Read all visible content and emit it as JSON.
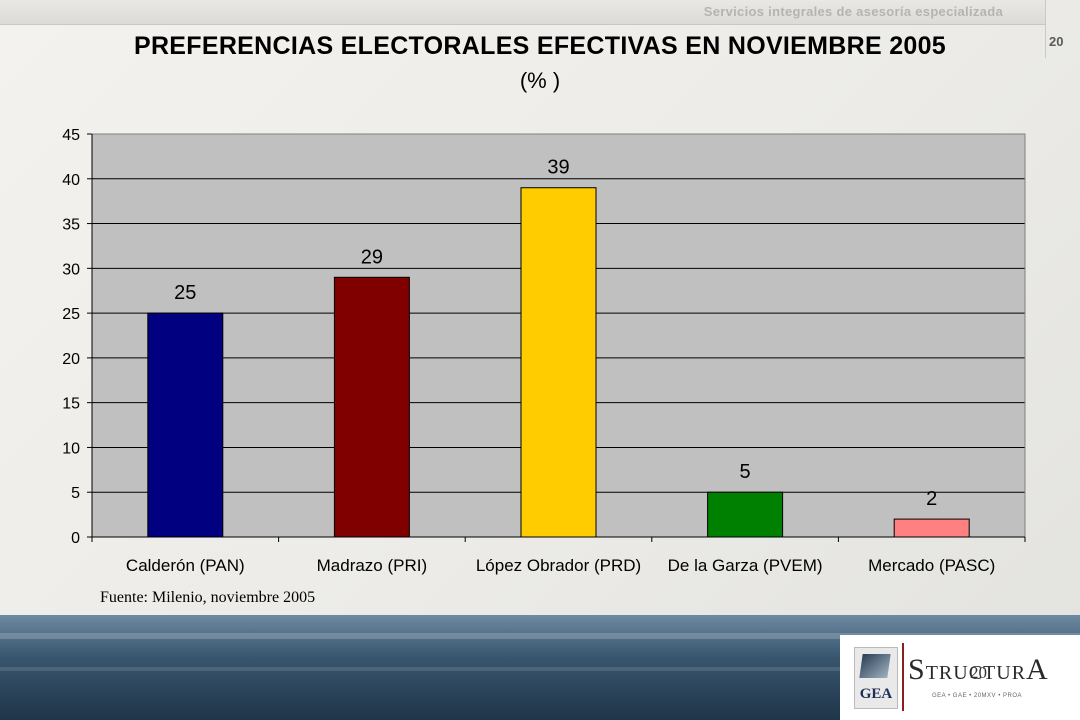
{
  "header": {
    "text": "Servicios integrales de asesoría especializada",
    "page_number": "20"
  },
  "chart_data": {
    "type": "bar",
    "title": "PREFERENCIAS ELECTORALES EFECTIVAS EN NOVIEMBRE 2005",
    "subtitle": "(% )",
    "categories": [
      "Calderón (PAN)",
      "Madrazo (PRI)",
      "López Obrador (PRD)",
      "De la Garza (PVEM)",
      "Mercado (PASC)"
    ],
    "values": [
      25,
      29,
      39,
      5,
      2
    ],
    "colors": [
      "#000080",
      "#800000",
      "#FFCC00",
      "#008000",
      "#FF8080"
    ],
    "ylim": [
      0,
      45
    ],
    "yticks": [
      0,
      5,
      10,
      15,
      20,
      25,
      30,
      35,
      40,
      45
    ],
    "plot_background": "#C0C0C0",
    "grid": true,
    "data_labels": true
  },
  "source": "Fuente: Milenio, noviembre 2005",
  "footer": {
    "gea_label": "GEA",
    "brand_first": "S",
    "brand_middle": "TRUCTUR",
    "brand_last": "A",
    "brand_sub": "GEA • GAE • 20MXV • PROA",
    "page_number": "20"
  }
}
